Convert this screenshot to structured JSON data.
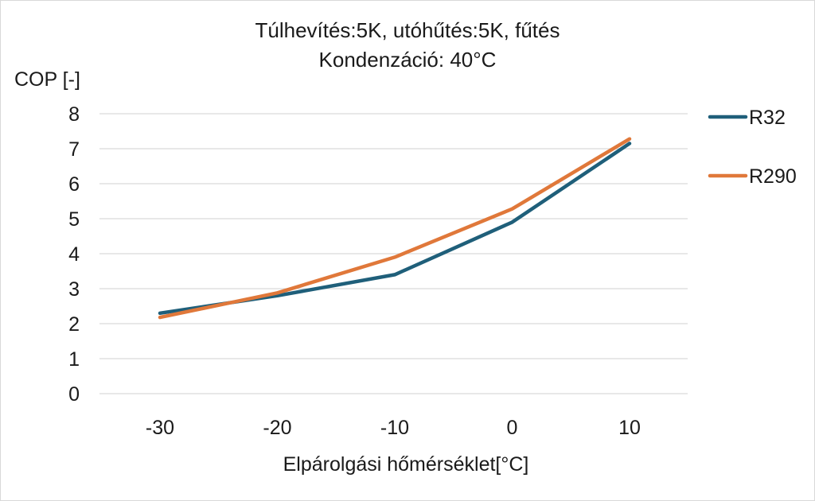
{
  "chart_data": {
    "type": "line",
    "title_line1": "Túlhevítés:5K, utóhűtés:5K, fűtés",
    "title_line2": "Kondenzáció: 40°C",
    "xlabel": "Elpárolgási hőmérséklet[°C]",
    "ylabel": "COP [-]",
    "x": [
      -30,
      -20,
      -10,
      0,
      10
    ],
    "x_tick_labels": [
      "-30",
      "-20",
      "-10",
      "0",
      "10"
    ],
    "ylim": [
      0,
      8
    ],
    "y_ticks": [
      0,
      1,
      2,
      3,
      4,
      5,
      6,
      7,
      8
    ],
    "grid": true,
    "legend_position": "right",
    "series": [
      {
        "name": "R32",
        "color": "#1f5f7a",
        "values": [
          2.3,
          2.8,
          3.4,
          4.9,
          7.15
        ]
      },
      {
        "name": "R290",
        "color": "#e0783a",
        "values": [
          2.18,
          2.88,
          3.9,
          5.28,
          7.28
        ]
      }
    ]
  }
}
